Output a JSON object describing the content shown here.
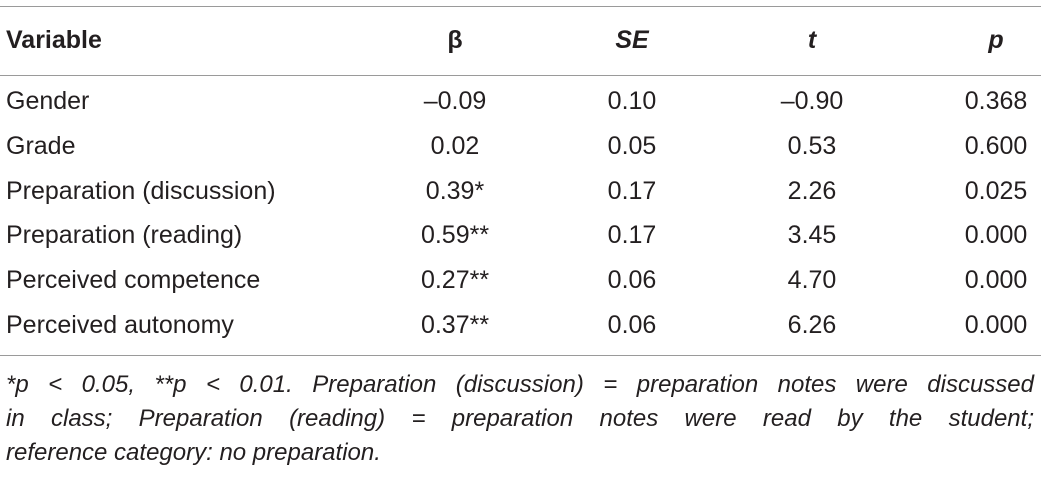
{
  "table": {
    "header": [
      "Variable",
      "β",
      "SE",
      "t",
      "p"
    ],
    "rows": [
      [
        "Gender",
        "–0.09",
        "0.10",
        "–0.90",
        "0.368"
      ],
      [
        "Grade",
        "0.02",
        "0.05",
        "0.53",
        "0.600"
      ],
      [
        "Preparation (discussion)",
        "0.39*",
        "0.17",
        "2.26",
        "0.025"
      ],
      [
        "Preparation (reading)",
        "0.59**",
        "0.17",
        "3.45",
        "0.000"
      ],
      [
        "Perceived competence",
        "0.27**",
        "0.06",
        "4.70",
        "0.000"
      ],
      [
        "Perceived autonomy",
        "0.37**",
        "0.06",
        "6.26",
        "0.000"
      ]
    ],
    "footnote": [
      "*p < 0.05, **p < 0.01. Preparation (discussion) = preparation notes were discussed",
      "in class; Preparation (reading) = preparation notes were read by the student;",
      "reference category: no preparation."
    ]
  }
}
